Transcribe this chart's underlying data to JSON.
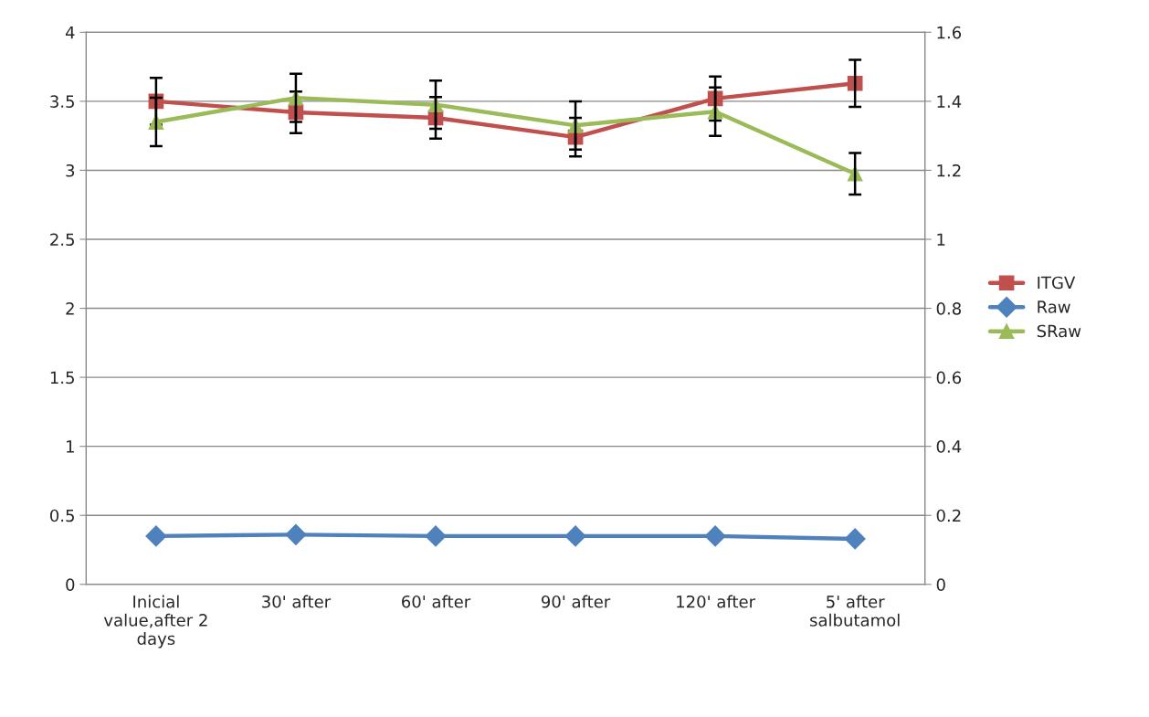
{
  "chart_data": {
    "type": "line",
    "categories": [
      "Inicial value,after 2 days",
      "30' after",
      "60' after",
      "90' after",
      "120' after",
      "5' after salbutamol"
    ],
    "series": [
      {
        "name": "ITGV",
        "color": "#c0504d",
        "marker": "square",
        "values": [
          3.5,
          3.42,
          3.38,
          3.24,
          3.52,
          3.63
        ],
        "errors": [
          0.17,
          0.15,
          0.15,
          0.14,
          0.16,
          0.17
        ]
      },
      {
        "name": "Raw",
        "color": "#4f81bd",
        "marker": "diamond",
        "values": [
          0.35,
          0.36,
          0.35,
          0.35,
          0.35,
          0.33
        ]
      },
      {
        "name": "SRaw",
        "color": "#9bbb59",
        "marker": "triangle",
        "axis": "y2",
        "values": [
          1.34,
          1.41,
          1.39,
          1.33,
          1.37,
          1.19
        ],
        "errors": [
          0.07,
          0.07,
          0.07,
          0.07,
          0.07,
          0.06
        ]
      }
    ],
    "ylim": [
      0,
      4
    ],
    "yticks": [
      0,
      0.5,
      1,
      1.5,
      2,
      2.5,
      3,
      3.5,
      4
    ],
    "y2lim": [
      0,
      1.6
    ],
    "y2ticks": [
      0,
      0.2,
      0.4,
      0.6,
      0.8,
      1,
      1.2,
      1.4,
      1.6
    ],
    "grid": "y",
    "legend": "right"
  }
}
